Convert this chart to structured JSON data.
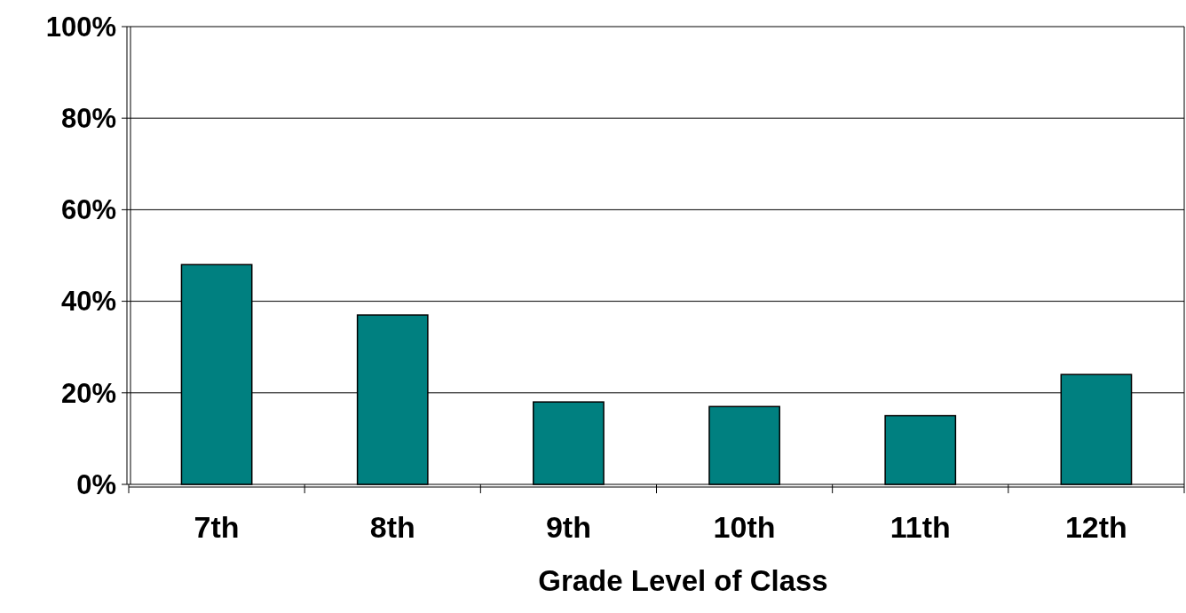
{
  "chart_data": {
    "type": "bar",
    "xlabel": "Grade Level of Class",
    "categories": [
      "7th",
      "8th",
      "9th",
      "10th",
      "11th",
      "12th"
    ],
    "values": [
      48,
      37,
      18,
      17,
      15,
      24
    ],
    "color": "#008080",
    "ylim": [
      0,
      100
    ],
    "yticks": [
      {
        "value": 0,
        "label": "0%"
      },
      {
        "value": 20,
        "label": "20%"
      },
      {
        "value": 40,
        "label": "40%"
      },
      {
        "value": 60,
        "label": "60%"
      },
      {
        "value": 80,
        "label": "80%"
      },
      {
        "value": 100,
        "label": "100%"
      }
    ],
    "grid": "y"
  }
}
